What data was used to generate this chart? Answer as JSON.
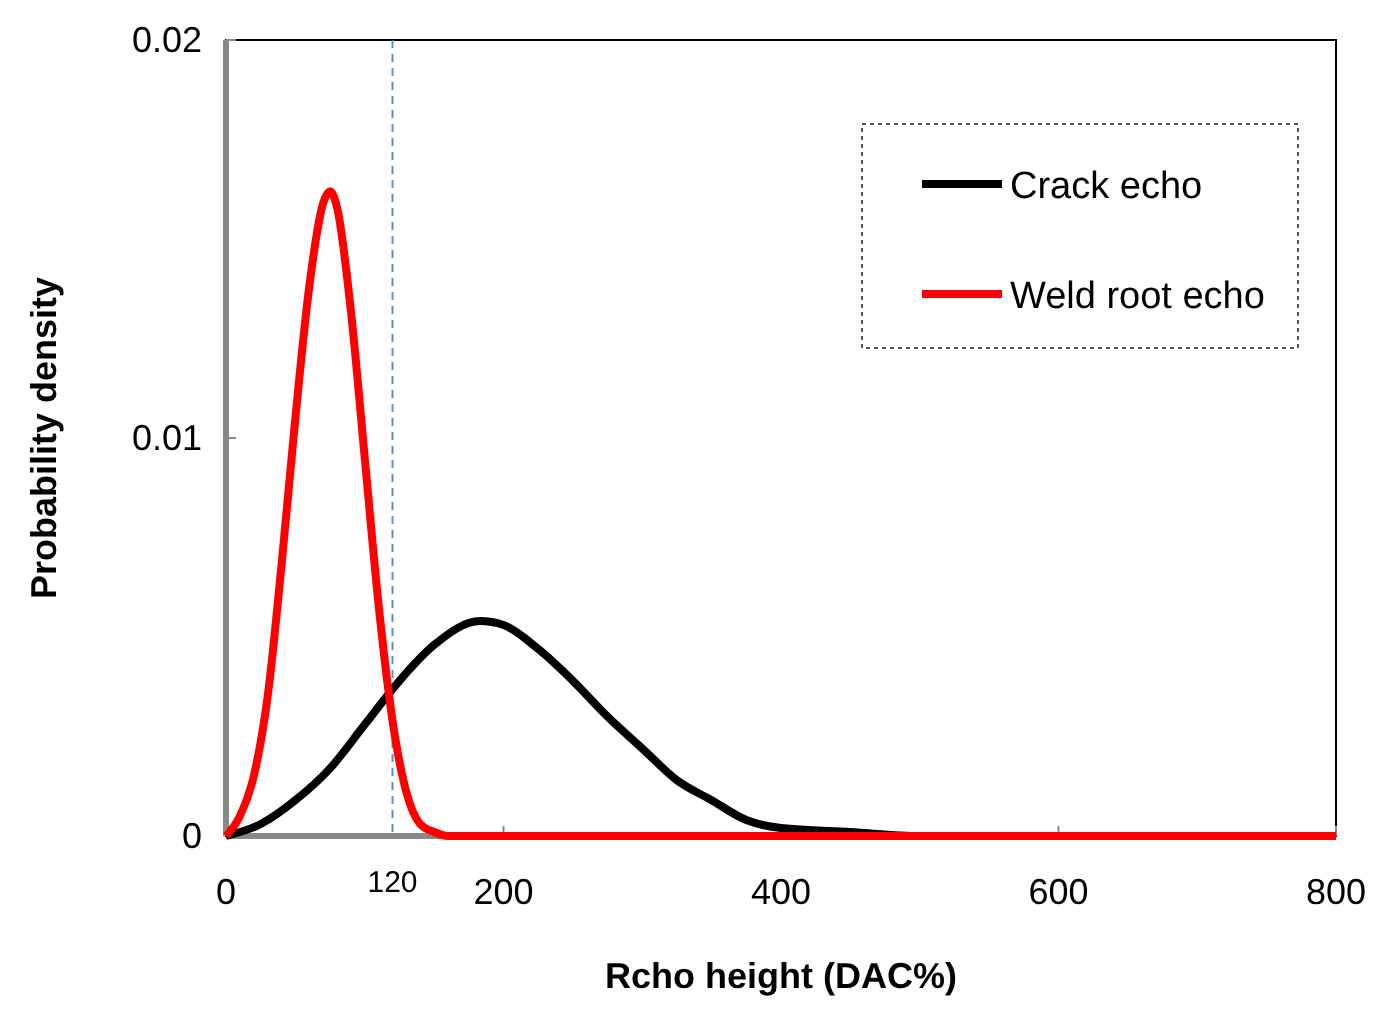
{
  "chart_data": {
    "type": "line",
    "xlabel": "Rcho height (DAC%)",
    "ylabel": "Probability density",
    "xlim": [
      0,
      800
    ],
    "xticks": [
      0,
      200,
      400,
      600,
      800
    ],
    "ylim": [
      0,
      0.02
    ],
    "yticks": [
      0,
      0.01,
      0.02
    ],
    "legend": "top right",
    "grid": false,
    "marker": "none",
    "line_style": "solid",
    "ref_lines": [
      {
        "axis": "x",
        "value": 120,
        "label": "120",
        "color": "#5b8fd0",
        "line_style": "dashed"
      }
    ],
    "series": [
      {
        "name": "Crack echo",
        "color": "#000000",
        "x": [
          0,
          25,
          50,
          75,
          100,
          125,
          150,
          183,
          200,
          225,
          250,
          275,
          300,
          325,
          350,
          375,
          400,
          450,
          500,
          800
        ],
        "values": [
          0,
          0.0003,
          0.0009,
          0.0017,
          0.0028,
          0.0039,
          0.0048,
          0.0054,
          0.0053,
          0.0047,
          0.0039,
          0.003,
          0.0022,
          0.0014,
          0.0009,
          0.0004,
          0.0002,
          0.0001,
          0,
          0
        ]
      },
      {
        "name": "Weld root echo",
        "color": "#ff0000",
        "x": [
          0,
          10,
          20,
          30,
          40,
          50,
          60,
          70,
          75,
          80,
          90,
          100,
          110,
          120,
          130,
          140,
          150,
          160,
          800
        ],
        "values": [
          0,
          0.0005,
          0.0015,
          0.0035,
          0.0068,
          0.0105,
          0.0138,
          0.0159,
          0.0162,
          0.0158,
          0.0132,
          0.0095,
          0.0058,
          0.0029,
          0.0011,
          0.0003,
          0.0001,
          0,
          0
        ]
      }
    ]
  }
}
